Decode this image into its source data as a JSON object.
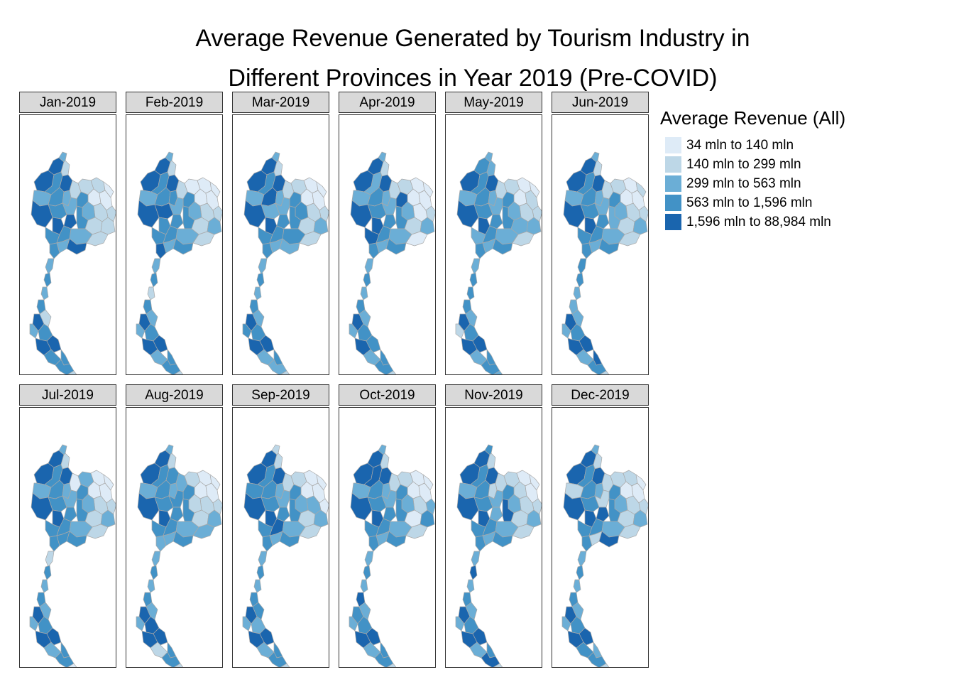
{
  "title": {
    "line1": "Average Revenue Generated by Tourism Industry in",
    "line2": "Different Provinces in Year 2019 (Pre-COVID)"
  },
  "legend": {
    "title": "Average Revenue (All)",
    "classes": [
      {
        "label": "34 mln to 140 mln",
        "color": "#deebf7"
      },
      {
        "label": "140 mln to 299 mln",
        "color": "#bdd7e7"
      },
      {
        "label": "299 mln to 563 mln",
        "color": "#6baed6"
      },
      {
        "label": "563 mln to 1,596 mln",
        "color": "#4292c6"
      },
      {
        "label": "1,596 mln to 88,984 mln",
        "color": "#1a65ae"
      }
    ]
  },
  "panels": [
    {
      "label": "Jan-2019"
    },
    {
      "label": "Feb-2019"
    },
    {
      "label": "Mar-2019"
    },
    {
      "label": "Apr-2019"
    },
    {
      "label": "May-2019"
    },
    {
      "label": "Jun-2019"
    },
    {
      "label": "Jul-2019"
    },
    {
      "label": "Aug-2019"
    },
    {
      "label": "Sep-2019"
    },
    {
      "label": "Oct-2019"
    },
    {
      "label": "Nov-2019"
    },
    {
      "label": "Dec-2019"
    }
  ],
  "colors": {
    "province_border": "#a8a8a8",
    "strip_background": "#d9d9d9",
    "frame_border": "#333333"
  }
}
